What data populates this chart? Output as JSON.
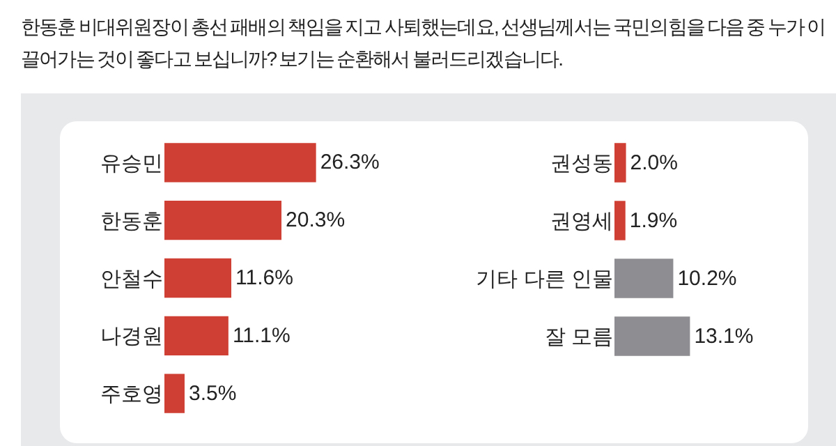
{
  "chart_data": [
    {
      "type": "bar",
      "orientation": "horizontal",
      "title": "한동훈 비대위원장이 총선 패배의 책임을 지고 사퇴했는데요, 선생님께서는 국민의힘을 다음 중 누가 이끌어가는 것이 좋다고 보십니까? 보기는 순환해서 불러드리겠습니다.",
      "tick_labels": "y",
      "categories": [
        "유승민",
        "한동훈",
        "안철수",
        "나경원",
        "주호영"
      ],
      "values": [
        26.3,
        20.3,
        11.6,
        11.1,
        3.5
      ],
      "colors": [
        "#d03f33",
        "#d03f33",
        "#d03f33",
        "#d03f33",
        "#d03f33"
      ],
      "value_labels": [
        "26.3%",
        "20.3%",
        "11.6%",
        "11.1%",
        "3.5%"
      ]
    },
    {
      "type": "bar",
      "orientation": "horizontal",
      "tick_labels": "y",
      "categories": [
        "권성동",
        "권영세",
        "기타 다른 인물",
        "잘 모름"
      ],
      "values": [
        2.0,
        1.9,
        10.2,
        13.1
      ],
      "colors": [
        "#d03f33",
        "#d03f33",
        "#8e8e92",
        "#8e8e92"
      ],
      "value_labels": [
        "2.0%",
        "1.9%",
        "10.2%",
        "13.1%"
      ]
    }
  ]
}
